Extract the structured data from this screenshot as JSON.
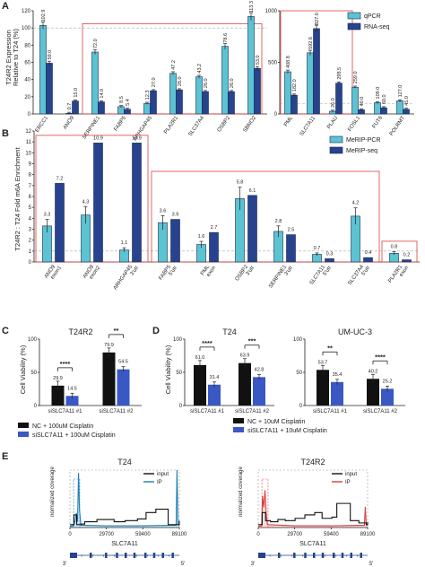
{
  "chart_data": [
    {
      "panel": "A",
      "type": "bar",
      "ylabel": "T24R2 Expression\nRelative to T24 (%)",
      "legend": [
        "qPCR",
        "RNA-seq"
      ],
      "colors": {
        "qPCR": "#5bc3d2",
        "RNA-seq": "#27438d"
      },
      "left": {
        "ylim": [
          0,
          120
        ],
        "yticks": [
          0,
          20,
          40,
          60,
          80,
          100,
          120
        ],
        "categories": [
          "ERCC1",
          "ANO9",
          "SERPINE1",
          "FABP5",
          "ARHGAP45",
          "PLA2R1",
          "SLC37A4",
          "OSBP2",
          "SBNO2"
        ],
        "series": [
          {
            "name": "qPCR",
            "values": [
              102.9,
              0.7,
              72.0,
              8.5,
              12.3,
              47.2,
              43.2,
              78.6,
              113.3
            ]
          },
          {
            "name": "RNA-seq",
            "values": [
              59.0,
              15.0,
              14.0,
              5.4,
              27.0,
              28.0,
              26.0,
              26.0,
              53.0
            ]
          }
        ],
        "labels": {
          "qPCR": [
            "102.9",
            "0.7",
            "72.0",
            "8.5",
            "12.3",
            "47.2",
            "43.2",
            "78.6",
            "113.3"
          ],
          "RNA-seq": [
            "59.0",
            "15.0",
            "14.0",
            "5.4",
            "27.0",
            "28.0",
            "26.0",
            "26.0",
            "53.0"
          ]
        }
      },
      "right": {
        "ylim": [
          0,
          1000
        ],
        "yticks": [
          0,
          500,
          1000
        ],
        "categories": [
          "PML",
          "SLC7A11",
          "PLAU",
          "FOSL1",
          "FUT6",
          "POLRMT"
        ],
        "series": [
          {
            "name": "qPCR",
            "values": [
              408.8,
              592.6,
              26.0,
              259.0,
              109.0,
              127.0
            ]
          },
          {
            "name": "RNA-seq",
            "values": [
              182.0,
              827.0,
              298.5,
              40.0,
              60.0,
              45.0
            ]
          }
        ],
        "labels": {
          "qPCR": [
            "408.8",
            "592.6",
            "26.0",
            "259.0",
            "109.0",
            "127.0"
          ],
          "RNA-seq": [
            "182.0",
            "827.0",
            "298.5",
            "40.0",
            "60.0",
            "45.0"
          ]
        }
      }
    },
    {
      "panel": "B",
      "type": "bar",
      "ylabel": "T24R2 : T24 Fold m6A Enrichment",
      "legend": [
        "MeRIP-PCR",
        "MeRIP-seq"
      ],
      "colors": {
        "MeRIP-PCR": "#5bc3d2",
        "MeRIP-seq": "#27438d"
      },
      "ylim": [
        0,
        12
      ],
      "yticks": [
        0,
        1,
        2,
        3,
        4,
        5,
        6,
        7,
        8,
        9,
        10,
        11,
        12
      ],
      "categories": [
        [
          "ANO9",
          "exon1"
        ],
        [
          "ANO9",
          "exon2"
        ],
        [
          "ARHGAP45",
          "3'utr"
        ],
        [
          "FABP5",
          "5'utr"
        ],
        [
          "PML",
          "exon"
        ],
        [
          "OSBP2",
          "3'utr"
        ],
        [
          "SERPINE1",
          "3'utr"
        ],
        [
          "SLC7A11",
          "5'utr"
        ],
        [
          "SLC37A4",
          "5'utr"
        ],
        [
          "PLA2R1",
          "exon"
        ]
      ],
      "series": [
        {
          "name": "MeRIP-PCR",
          "values": [
            3.3,
            4.3,
            1.1,
            3.6,
            1.6,
            5.8,
            2.8,
            0.7,
            4.2,
            0.8
          ]
        },
        {
          "name": "MeRIP-seq",
          "values": [
            7.2,
            10.9,
            10.9,
            3.9,
            2.7,
            6.1,
            2.5,
            0.3,
            0.4,
            0.2
          ]
        }
      ],
      "labels": {
        "MeRIP-PCR": [
          "3.3",
          "4.3",
          "1.1",
          "3.6",
          "1.6",
          "5.8",
          "2.8",
          "0.7",
          "4.2",
          "0.8"
        ],
        "MeRIP-seq": [
          "7.2",
          "10.9",
          "10.9",
          "3.9",
          "2.7",
          "6.1",
          "2.5",
          "0.3",
          "0.4",
          "0.2"
        ]
      }
    },
    {
      "panel": "C",
      "type": "bar",
      "title": "T24R2",
      "ylabel": "Cell Viability (%)",
      "ylim": [
        0,
        100
      ],
      "yticks": [
        0,
        50,
        100
      ],
      "categories": [
        "siSLC7A11 #1",
        "siSLC7A11 #2"
      ],
      "series": [
        {
          "name": "NC + 100uM Cisplatin",
          "values": [
            29.9,
            79.9
          ]
        },
        {
          "name": "siSLC7A11 + 100uM Cisplatin",
          "values": [
            14.5,
            54.5
          ]
        }
      ],
      "labels": [
        [
          "29.9",
          "79.9"
        ],
        [
          "14.5",
          "54.5"
        ]
      ],
      "significance": [
        "****",
        "**"
      ],
      "legend": [
        "NC + 100uM Cisplatin",
        "siSLC7A11 + 100uM Cisplatin"
      ]
    },
    {
      "panel": "D",
      "type": "bar",
      "ylabel": "Cell Viability (%)",
      "ylim": [
        0,
        100
      ],
      "yticks": [
        0,
        50,
        100
      ],
      "subplots": [
        {
          "title": "T24",
          "categories": [
            "siSLC7A11 #1",
            "siSLC7A11 #2"
          ],
          "series": [
            {
              "name": "NC + 10uM Cisplatin",
              "values": [
                61.0,
                63.9
              ]
            },
            {
              "name": "siSLC7A11 + 10uM Cisplatin",
              "values": [
                31.4,
                42.8
              ]
            }
          ],
          "labels": [
            [
              "61.0",
              "63.9"
            ],
            [
              "31.4",
              "42.8"
            ]
          ],
          "significance": [
            "****",
            "***"
          ]
        },
        {
          "title": "UM-UC-3",
          "categories": [
            "siSLC7A11 #1",
            "siSLC7A11 #2"
          ],
          "series": [
            {
              "name": "NC + 10uM Cisplatin",
              "values": [
                53.7,
                40.2
              ]
            },
            {
              "name": "siSLC7A11 + 10uM Cisplatin",
              "values": [
                35.4,
                25.2
              ]
            }
          ],
          "labels": [
            [
              "53.7",
              "40.2"
            ],
            [
              "35.4",
              "25.2"
            ]
          ],
          "significance": [
            "**",
            "****"
          ]
        }
      ],
      "legend": [
        "NC + 10uM Cisplatin",
        "siSLC7A11 + 10uM Cisplatin"
      ]
    },
    {
      "panel": "E",
      "type": "line",
      "ylabel": "normalized\ncoverage",
      "xlabel": "SLC7A11",
      "xticks": [
        0,
        29700,
        59400,
        89100
      ],
      "xtick_labels": [
        "0",
        "29700",
        "59400",
        "89100"
      ],
      "strand_labels": [
        "3'",
        "5'"
      ],
      "subplots": [
        {
          "title": "T24",
          "legend": [
            "input",
            "IP"
          ],
          "colors": {
            "input": "#111111",
            "IP": "#1f7fb5"
          },
          "input": [
            [
              0,
              0.05
            ],
            [
              2000,
              0.05
            ],
            [
              3200,
              0.22
            ],
            [
              4500,
              0.22
            ],
            [
              5500,
              0.05
            ],
            [
              9000,
              0.06
            ],
            [
              12000,
              0.1
            ],
            [
              16000,
              0.1
            ],
            [
              22000,
              0.14
            ],
            [
              29000,
              0.14
            ],
            [
              36000,
              0.1
            ],
            [
              45000,
              0.12
            ],
            [
              55000,
              0.15
            ],
            [
              62000,
              0.26
            ],
            [
              68000,
              0.26
            ],
            [
              70000,
              0.32
            ],
            [
              75000,
              0.32
            ],
            [
              80000,
              0.05
            ],
            [
              88000,
              0.05
            ],
            [
              89100,
              0.12
            ]
          ],
          "ip": [
            [
              0,
              0.02
            ],
            [
              3000,
              0.03
            ],
            [
              4200,
              0.12
            ],
            [
              5200,
              0.25
            ],
            [
              6200,
              0.1
            ],
            [
              7000,
              0.95
            ],
            [
              7800,
              0.3
            ],
            [
              9000,
              0.04
            ],
            [
              30000,
              0.03
            ],
            [
              60000,
              0.03
            ],
            [
              86500,
              0.04
            ],
            [
              87200,
              1.0
            ],
            [
              88000,
              0.05
            ],
            [
              89100,
              0.04
            ]
          ],
          "highlight_x": [
            3000,
            8000
          ]
        },
        {
          "title": "T24R2",
          "legend": [
            "input",
            "IP"
          ],
          "colors": {
            "input": "#111111",
            "IP": "#d9423e"
          },
          "input": [
            [
              0,
              0.05
            ],
            [
              2000,
              0.05
            ],
            [
              3200,
              0.26
            ],
            [
              5000,
              0.26
            ],
            [
              6000,
              0.12
            ],
            [
              10000,
              0.1
            ],
            [
              16000,
              0.14
            ],
            [
              22000,
              0.12
            ],
            [
              30000,
              0.16
            ],
            [
              38000,
              0.22
            ],
            [
              46000,
              0.26
            ],
            [
              52000,
              0.16
            ],
            [
              60000,
              0.18
            ],
            [
              64000,
              0.42
            ],
            [
              70000,
              0.42
            ],
            [
              75000,
              0.12
            ],
            [
              82000,
              0.08
            ],
            [
              88000,
              0.05
            ],
            [
              89100,
              0.1
            ]
          ],
          "ip": [
            [
              0,
              0.02
            ],
            [
              2800,
              0.03
            ],
            [
              3500,
              0.55
            ],
            [
              4500,
              0.35
            ],
            [
              5500,
              0.65
            ],
            [
              6500,
              0.25
            ],
            [
              7500,
              0.05
            ],
            [
              30000,
              0.03
            ],
            [
              60000,
              0.03
            ],
            [
              86500,
              0.04
            ],
            [
              87200,
              0.36
            ],
            [
              88000,
              0.05
            ],
            [
              89100,
              0.04
            ]
          ],
          "highlight_x": [
            3000,
            8000
          ]
        }
      ]
    }
  ]
}
